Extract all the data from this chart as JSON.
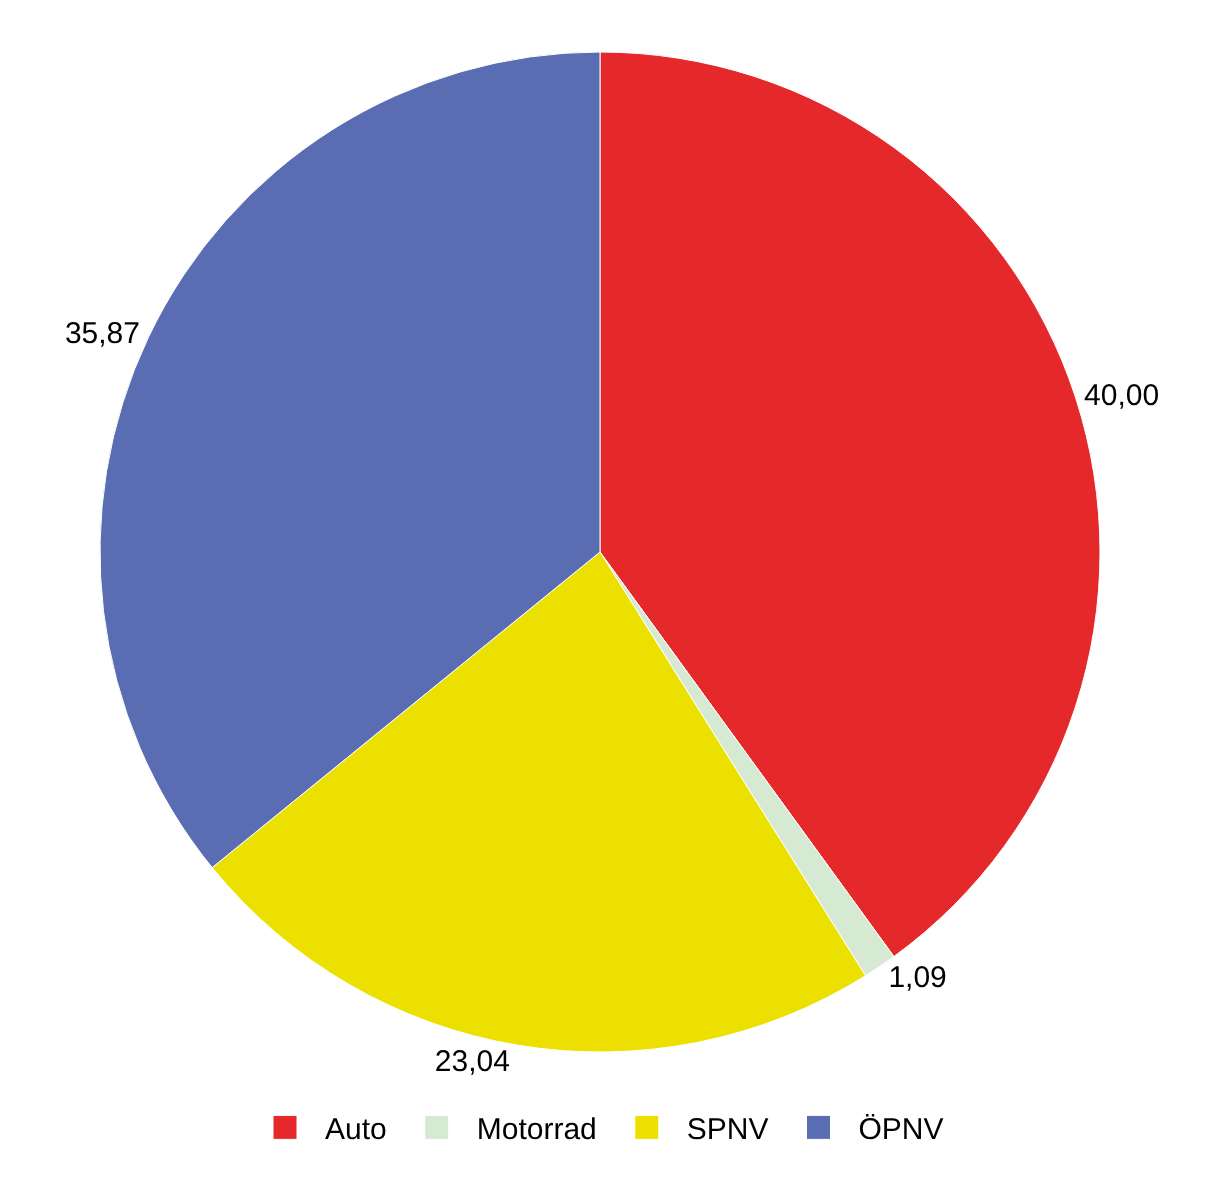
{
  "chart_data": {
    "type": "pie",
    "categories": [
      "Auto",
      "Motorrad",
      "SPNV",
      "ÖPNV"
    ],
    "values": [
      40.0,
      1.09,
      23.04,
      35.87
    ],
    "colors": [
      "#e5282a",
      "#d6ead3",
      "#ece000",
      "#5a6db3"
    ],
    "value_labels": [
      "40,00",
      "1,09",
      "23,04",
      "35,87"
    ],
    "legend": "bottom"
  }
}
